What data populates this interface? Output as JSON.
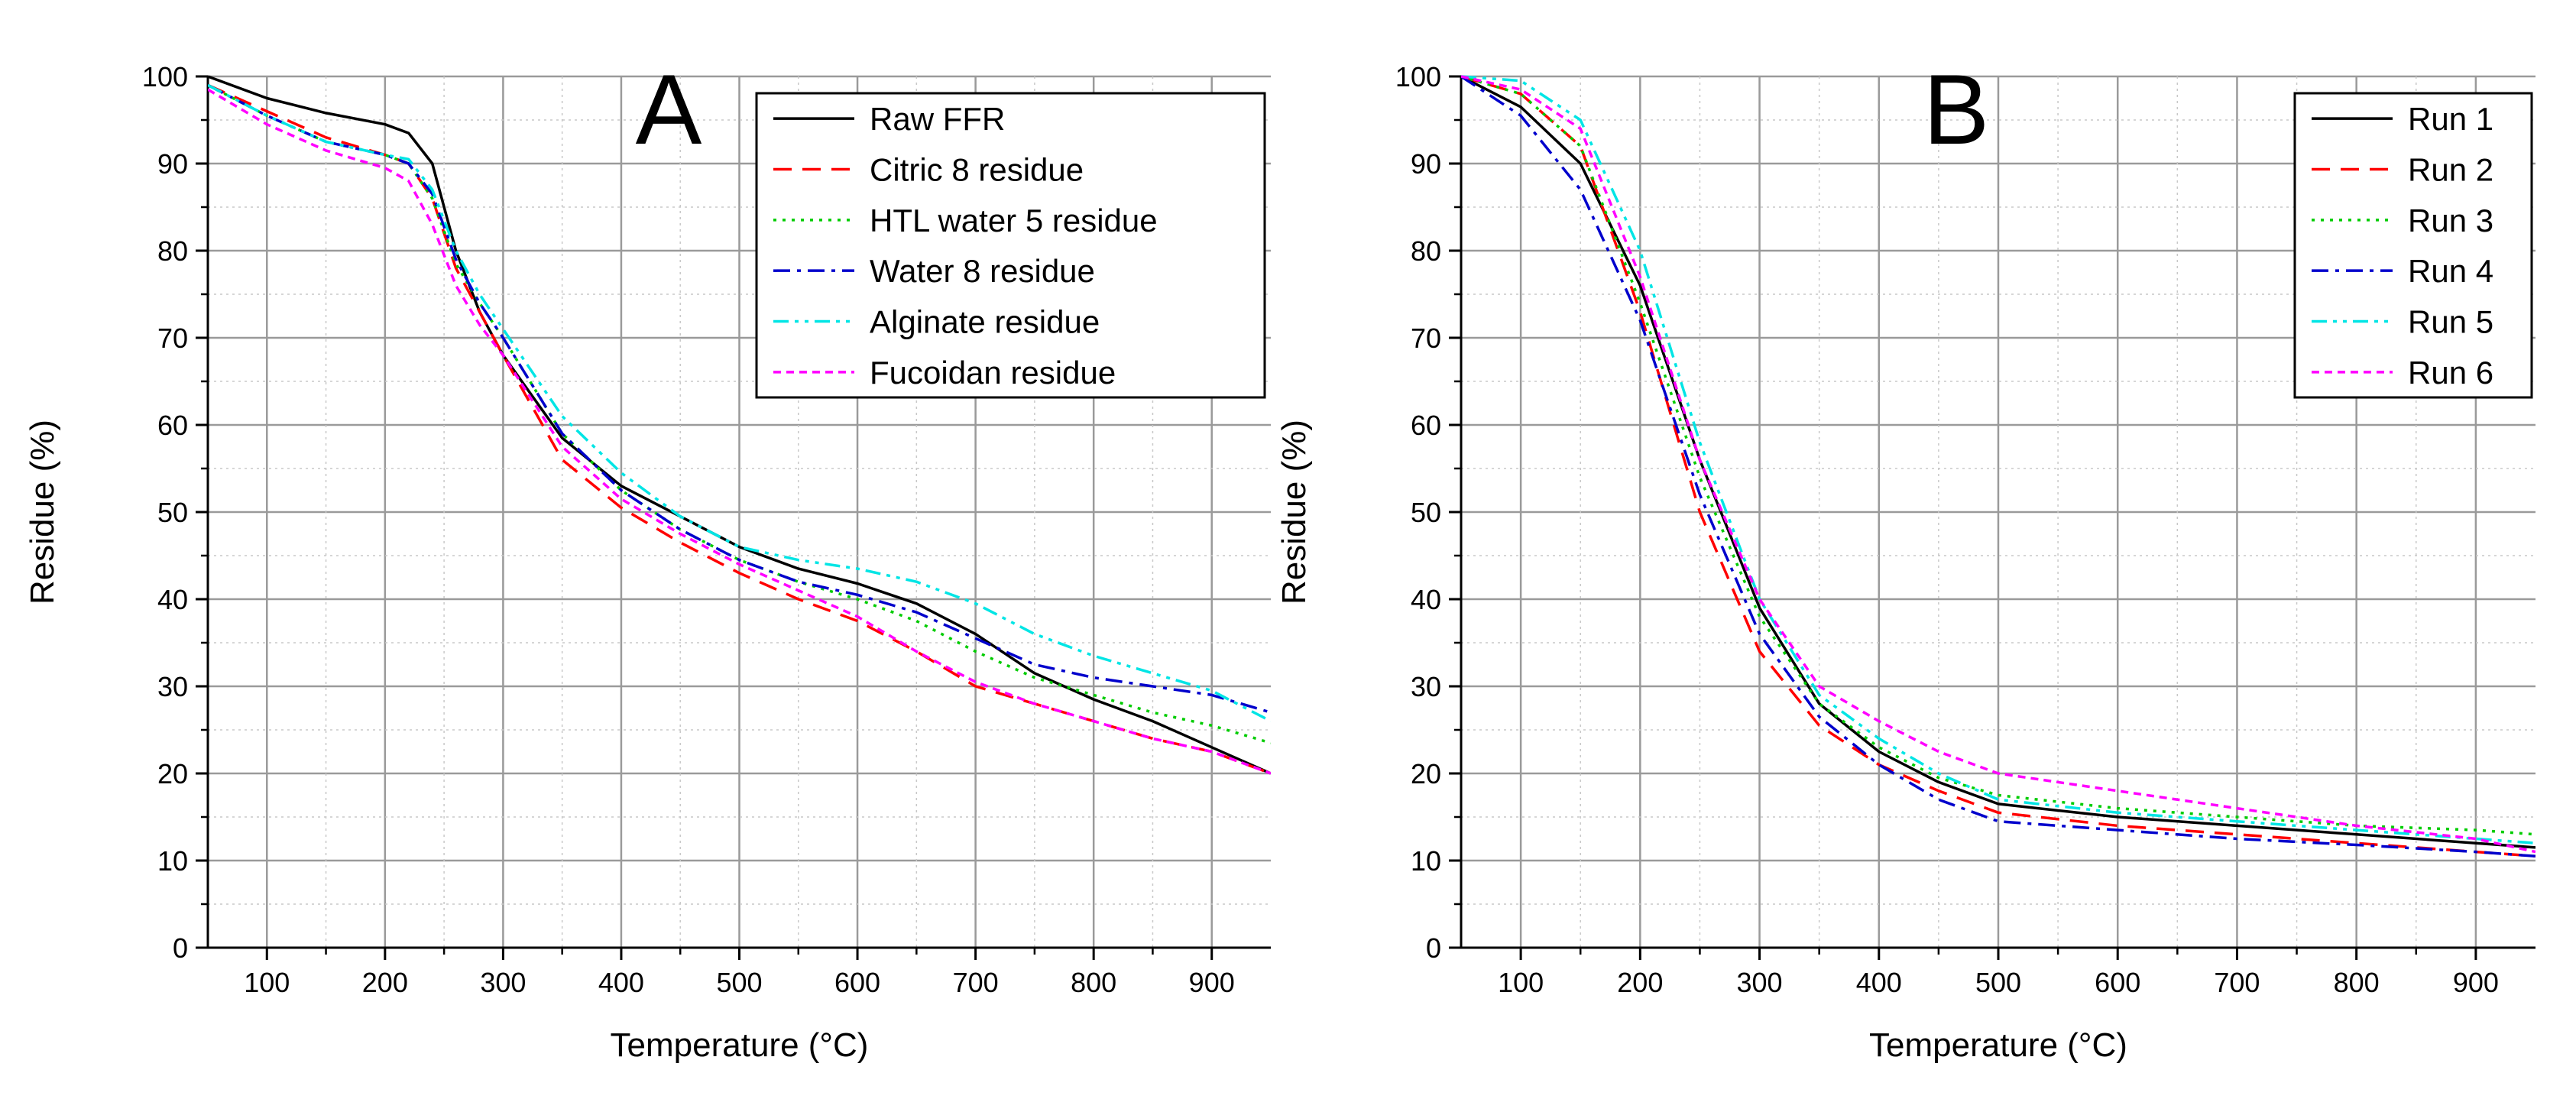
{
  "chart_data": [
    {
      "type": "line",
      "panel_label": "A",
      "xlabel": "Temperature (°C)",
      "ylabel": "Residue (%)",
      "xlim": [
        50,
        950
      ],
      "ylim": [
        0,
        100
      ],
      "x_ticks": [
        100,
        200,
        300,
        400,
        500,
        600,
        700,
        800,
        900
      ],
      "x_tick_labels": [
        "100",
        "200",
        "300",
        "400",
        "500",
        "600",
        "700",
        "800",
        "900"
      ],
      "y_ticks": [
        0,
        10,
        20,
        30,
        40,
        50,
        60,
        70,
        80,
        90,
        100
      ],
      "y_tick_labels": [
        "0",
        "10",
        "20",
        "30",
        "40",
        "50",
        "60",
        "70",
        "80",
        "90",
        "100"
      ],
      "grid": true,
      "legend_position": "top-right",
      "series": [
        {
          "name": "Raw FFR",
          "color": "#000000",
          "dash": "solid",
          "x": [
            50,
            100,
            150,
            200,
            220,
            240,
            260,
            280,
            300,
            350,
            400,
            450,
            500,
            550,
            600,
            650,
            700,
            750,
            800,
            850,
            900,
            950
          ],
          "y": [
            100,
            97.5,
            95.8,
            94.5,
            93.5,
            90,
            80,
            73,
            68,
            58.5,
            53,
            49.5,
            46,
            43.5,
            41.8,
            39.5,
            36,
            31.5,
            28.5,
            26,
            23,
            20
          ]
        },
        {
          "name": "Citric 8 residue",
          "color": "#ff0000",
          "dash": "long-dash",
          "x": [
            50,
            100,
            150,
            200,
            220,
            240,
            260,
            280,
            300,
            350,
            400,
            450,
            500,
            550,
            600,
            650,
            700,
            750,
            800,
            850,
            900,
            950
          ],
          "y": [
            99,
            96,
            93,
            91,
            90,
            86,
            78,
            73,
            68,
            56,
            50.5,
            46.5,
            43,
            40,
            37.5,
            34,
            30,
            28,
            26,
            24,
            22.5,
            20
          ]
        },
        {
          "name": "HTL water 5 residue",
          "color": "#00cc00",
          "dash": "dotted",
          "x": [
            50,
            100,
            150,
            200,
            220,
            240,
            260,
            280,
            300,
            350,
            400,
            450,
            500,
            550,
            600,
            650,
            700,
            750,
            800,
            850,
            900,
            950
          ],
          "y": [
            99,
            95.5,
            92.5,
            91,
            90,
            86,
            78.5,
            74,
            70,
            59,
            52.5,
            48,
            44.5,
            42,
            40,
            37.5,
            34,
            31,
            29,
            27,
            25.5,
            23.5
          ]
        },
        {
          "name": "Water 8 residue",
          "color": "#0000cc",
          "dash": "dash-dot",
          "x": [
            50,
            100,
            150,
            200,
            220,
            240,
            260,
            280,
            300,
            350,
            400,
            450,
            500,
            550,
            600,
            650,
            700,
            750,
            800,
            850,
            900,
            950
          ],
          "y": [
            99,
            95.5,
            92.5,
            91,
            90,
            86.5,
            79,
            74,
            70,
            59,
            52.5,
            48,
            44.5,
            42,
            40.5,
            38.5,
            35.5,
            32.5,
            31,
            30,
            29,
            27
          ]
        },
        {
          "name": "Alginate residue",
          "color": "#00e5e5",
          "dash": "dash-dot-dot",
          "x": [
            50,
            100,
            150,
            200,
            220,
            240,
            260,
            280,
            300,
            350,
            400,
            450,
            500,
            550,
            600,
            650,
            700,
            750,
            800,
            850,
            900,
            950
          ],
          "y": [
            99,
            95.5,
            92.5,
            91,
            90.5,
            87,
            80,
            75,
            71,
            61,
            54.5,
            49.5,
            46,
            44.5,
            43.5,
            42,
            39.5,
            36,
            33.5,
            31.5,
            29.5,
            26
          ]
        },
        {
          "name": "Fucoidan residue",
          "color": "#ff00ff",
          "dash": "short-dash",
          "x": [
            50,
            100,
            150,
            200,
            220,
            240,
            260,
            280,
            300,
            350,
            400,
            450,
            500,
            550,
            600,
            650,
            700,
            750,
            800,
            850,
            900,
            950
          ],
          "y": [
            98.5,
            94.5,
            91.5,
            89.5,
            88,
            83,
            76,
            71.5,
            68,
            57.5,
            51.5,
            47.5,
            44,
            41,
            38,
            34,
            30.5,
            28,
            26,
            24,
            22.5,
            20
          ]
        }
      ]
    },
    {
      "type": "line",
      "panel_label": "B",
      "xlabel": "Temperature (°C)",
      "ylabel": "Residue (%)",
      "xlim": [
        50,
        950
      ],
      "ylim": [
        0,
        100
      ],
      "x_ticks": [
        100,
        200,
        300,
        400,
        500,
        600,
        700,
        800,
        900
      ],
      "x_tick_labels": [
        "100",
        "200",
        "300",
        "400",
        "500",
        "600",
        "700",
        "800",
        "900"
      ],
      "y_ticks": [
        0,
        10,
        20,
        30,
        40,
        50,
        60,
        70,
        80,
        90,
        100
      ],
      "y_tick_labels": [
        "0",
        "10",
        "20",
        "30",
        "40",
        "50",
        "60",
        "70",
        "80",
        "90",
        "100"
      ],
      "grid": true,
      "legend_position": "top-right",
      "series": [
        {
          "name": "Run 1",
          "color": "#000000",
          "dash": "solid",
          "x": [
            50,
            100,
            150,
            200,
            250,
            300,
            350,
            400,
            450,
            500,
            600,
            700,
            800,
            900,
            950
          ],
          "y": [
            100,
            96.5,
            90,
            76,
            56,
            39,
            28,
            22.5,
            19,
            16.5,
            15,
            14,
            13,
            12,
            11.5
          ]
        },
        {
          "name": "Run 2",
          "color": "#ff0000",
          "dash": "long-dash",
          "x": [
            50,
            100,
            150,
            200,
            250,
            300,
            350,
            400,
            450,
            500,
            600,
            700,
            800,
            900,
            950
          ],
          "y": [
            100,
            98,
            92,
            73,
            50,
            34,
            25.5,
            21,
            18,
            15.5,
            14,
            13,
            12,
            11,
            10.5
          ]
        },
        {
          "name": "Run 3",
          "color": "#00cc00",
          "dash": "dotted",
          "x": [
            50,
            100,
            150,
            200,
            250,
            300,
            350,
            400,
            450,
            500,
            600,
            700,
            800,
            900,
            950
          ],
          "y": [
            100,
            98,
            92,
            74,
            54,
            38,
            28,
            23,
            19.5,
            17.5,
            16,
            15,
            14,
            13.5,
            13
          ]
        },
        {
          "name": "Run 4",
          "color": "#0000cc",
          "dash": "dash-dot",
          "x": [
            50,
            100,
            150,
            200,
            250,
            300,
            350,
            400,
            450,
            500,
            600,
            700,
            800,
            900,
            950
          ],
          "y": [
            100,
            95.5,
            87,
            72,
            52,
            36,
            26.5,
            21,
            17,
            14.5,
            13.5,
            12.5,
            11.8,
            11,
            10.5
          ]
        },
        {
          "name": "Run 5",
          "color": "#00e5e5",
          "dash": "dash-dot-dot",
          "x": [
            50,
            100,
            150,
            200,
            250,
            300,
            350,
            400,
            450,
            500,
            600,
            700,
            800,
            900,
            950
          ],
          "y": [
            100,
            99.5,
            95,
            80,
            58,
            40,
            29,
            24,
            20,
            17,
            15.5,
            14.5,
            13.5,
            12.5,
            12
          ]
        },
        {
          "name": "Run 6",
          "color": "#ff00ff",
          "dash": "short-dash",
          "x": [
            50,
            100,
            150,
            200,
            250,
            300,
            350,
            400,
            450,
            500,
            600,
            700,
            800,
            900,
            950
          ],
          "y": [
            100,
            98.5,
            94,
            77,
            56,
            40,
            30,
            26,
            22.5,
            20,
            18,
            16,
            14,
            12.5,
            11
          ]
        }
      ]
    }
  ]
}
